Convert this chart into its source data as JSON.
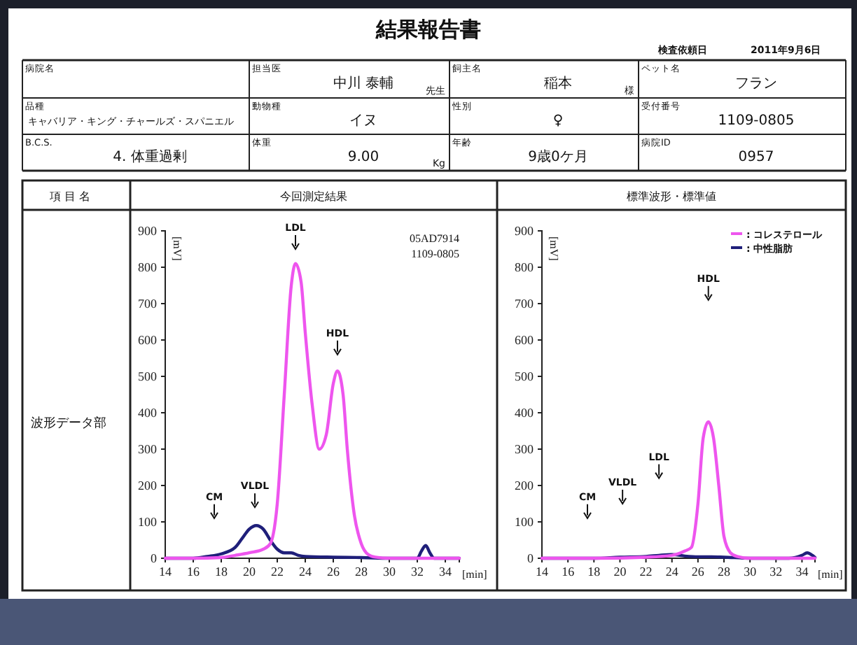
{
  "chart_data": [
    {
      "type": "other",
      "title": "結果報告書",
      "annotations": [
        "検査依頼日",
        "2011年9月6日",
        "病院名",
        "担当医",
        "中川 泰輔",
        "先生",
        "飼主名",
        "稲本",
        "様",
        "ペット名",
        "フラン",
        "品種",
        "キャバリア・キング・チャールズ・スパニエル",
        "動物種",
        "イヌ",
        "性別",
        "♀",
        "受付番号",
        "1109-0805",
        "B.C.S.",
        "4. 体重過剰",
        "体重",
        "9.00",
        "Kg",
        "年齢",
        "9歳0ケ月",
        "病院ID",
        "0957",
        "項 目 名",
        "波形データ部"
      ]
    },
    {
      "type": "line",
      "title": "今回測定結果",
      "xlabel": "[min]",
      "ylabel": "[mV]",
      "xlim": [
        14,
        35
      ],
      "xticks": [
        14,
        16,
        18,
        20,
        22,
        24,
        26,
        28,
        30,
        32,
        34
      ],
      "ylim": [
        0,
        900
      ],
      "yticks": [
        0,
        100,
        200,
        300,
        400,
        500,
        600,
        700,
        800,
        900
      ],
      "series": [
        {
          "color": "#ee55ee",
          "x": [
            14,
            16,
            18,
            19,
            20,
            21,
            21.5,
            22,
            22.5,
            23,
            23.3,
            23.7,
            24,
            24.5,
            25,
            25.5,
            26,
            26.3,
            26.7,
            27,
            27.5,
            28,
            28.5,
            29,
            30,
            32,
            35
          ],
          "values": [
            0,
            0,
            2,
            8,
            15,
            25,
            40,
            150,
            450,
            750,
            810,
            760,
            620,
            420,
            300,
            340,
            480,
            515,
            450,
            300,
            120,
            40,
            10,
            3,
            0,
            0,
            0
          ]
        },
        {
          "color": "#1f1f7a",
          "x": [
            14,
            16,
            17,
            18,
            19,
            19.5,
            20,
            20.5,
            21,
            21.5,
            22,
            22.5,
            23,
            23.5,
            24,
            26,
            28,
            30,
            32,
            32.3,
            32.6,
            32.9,
            33.2,
            35
          ],
          "values": [
            0,
            0,
            5,
            12,
            30,
            55,
            80,
            90,
            80,
            50,
            25,
            15,
            15,
            8,
            5,
            3,
            2,
            0,
            0,
            20,
            35,
            15,
            0,
            0
          ]
        }
      ],
      "annotations": [
        {
          "text": "CM",
          "x": 17.5,
          "y": 110
        },
        {
          "text": "VLDL",
          "x": 20.4,
          "y": 140
        },
        {
          "text": "LDL",
          "x": 23.3,
          "y": 850
        },
        {
          "text": "HDL",
          "x": 26.3,
          "y": 560
        },
        "05AD7914",
        "1109-0805"
      ]
    },
    {
      "type": "line",
      "title": "標準波形・標準値",
      "xlabel": "[min]",
      "ylabel": "[mV]",
      "xlim": [
        14,
        35
      ],
      "xticks": [
        14,
        16,
        18,
        20,
        22,
        24,
        26,
        28,
        30,
        32,
        34
      ],
      "ylim": [
        0,
        900
      ],
      "yticks": [
        0,
        100,
        200,
        300,
        400,
        500,
        600,
        700,
        800,
        900
      ],
      "legend": "top right",
      "series": [
        {
          "name": ": コレステロール",
          "color": "#ee55ee",
          "x": [
            14,
            18,
            22,
            24,
            25,
            25.5,
            26,
            26.4,
            26.8,
            27.2,
            27.6,
            28,
            28.5,
            29,
            30,
            35
          ],
          "values": [
            0,
            0,
            3,
            8,
            20,
            30,
            150,
            330,
            375,
            330,
            200,
            60,
            15,
            5,
            0,
            0
          ]
        },
        {
          "name": ": 中性脂肪",
          "color": "#1f1f7a",
          "x": [
            14,
            18,
            20,
            22,
            23,
            24,
            25,
            26,
            27,
            28,
            30,
            33,
            34,
            34.4,
            34.8,
            35
          ],
          "values": [
            0,
            0,
            3,
            5,
            8,
            10,
            6,
            4,
            4,
            3,
            0,
            0,
            8,
            15,
            8,
            2
          ]
        }
      ],
      "annotations": [
        {
          "text": "CM",
          "x": 17.5,
          "y": 110
        },
        {
          "text": "VLDL",
          "x": 20.2,
          "y": 150
        },
        {
          "text": "LDL",
          "x": 23,
          "y": 220
        },
        {
          "text": "HDL",
          "x": 26.8,
          "y": 710
        }
      ]
    }
  ]
}
